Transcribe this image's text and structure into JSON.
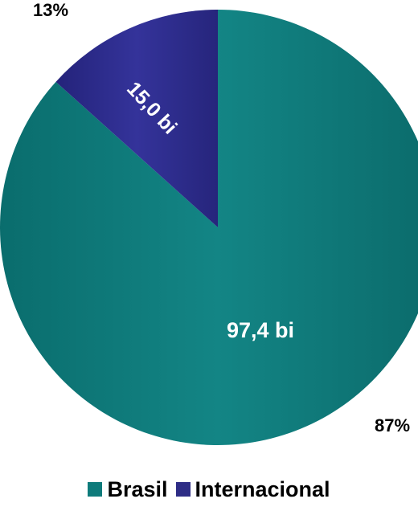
{
  "chart_data": {
    "type": "pie",
    "title": "",
    "slices": [
      {
        "name": "Brasil",
        "value": 97.4,
        "value_label": "97,4 bi",
        "percent_label": "87%",
        "color": "#0e7b7b"
      },
      {
        "name": "Internacional",
        "value": 15.0,
        "value_label": "15,0 bi",
        "percent_label": "13%",
        "color": "#2e2d86"
      }
    ],
    "start_angle_deg": 0,
    "direction": "clockwise",
    "legend_position": "bottom"
  }
}
